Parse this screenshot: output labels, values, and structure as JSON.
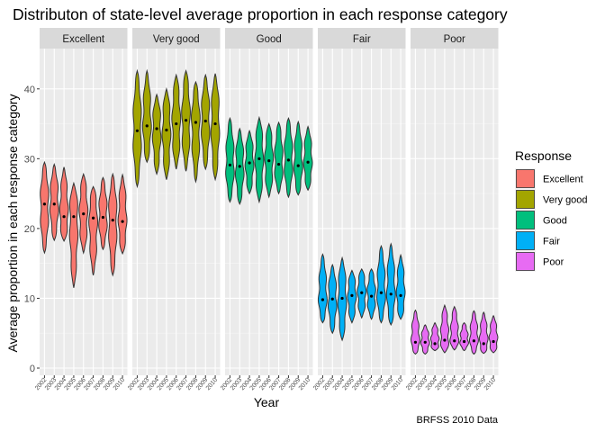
{
  "chart_data": {
    "type": "violin",
    "title": "Distributon of state-level average proportion in each response category",
    "xlabel": "Year",
    "ylabel": "Average proportion in each response category",
    "caption": "BRFSS 2010 Data",
    "ylim": [
      0,
      45
    ],
    "yticks": [
      0,
      10,
      20,
      30,
      40
    ],
    "years": [
      "2002",
      "2003",
      "2004",
      "2005",
      "2006",
      "2007",
      "2008",
      "2009",
      "2010"
    ],
    "legend": {
      "title": "Response",
      "position": "right"
    },
    "grid": true,
    "facets": [
      {
        "name": "Excellent",
        "color": "#F8766D",
        "violins": [
          {
            "year": "2002",
            "min": 16.5,
            "max": 29.5,
            "median": 23.5
          },
          {
            "year": "2003",
            "min": 18.3,
            "max": 29.2,
            "median": 23.5
          },
          {
            "year": "2004",
            "min": 18.2,
            "max": 28.8,
            "median": 21.7
          },
          {
            "year": "2005",
            "min": 11.5,
            "max": 26.5,
            "median": 21.7
          },
          {
            "year": "2006",
            "min": 16.5,
            "max": 27.8,
            "median": 22.1
          },
          {
            "year": "2007",
            "min": 13.3,
            "max": 26.0,
            "median": 21.5
          },
          {
            "year": "2008",
            "min": 17.0,
            "max": 27.3,
            "median": 21.6
          },
          {
            "year": "2009",
            "min": 13.3,
            "max": 27.8,
            "median": 21.2
          },
          {
            "year": "2010",
            "min": 16.4,
            "max": 27.7,
            "median": 21.0
          }
        ]
      },
      {
        "name": "Very good",
        "color": "#A3A500",
        "violins": [
          {
            "year": "2002",
            "min": 26.0,
            "max": 42.6,
            "median": 34.0
          },
          {
            "year": "2003",
            "min": 29.5,
            "max": 42.6,
            "median": 34.7
          },
          {
            "year": "2004",
            "min": 27.8,
            "max": 39.2,
            "median": 34.3
          },
          {
            "year": "2005",
            "min": 27.0,
            "max": 40.0,
            "median": 34.1
          },
          {
            "year": "2006",
            "min": 28.5,
            "max": 42.0,
            "median": 35.0
          },
          {
            "year": "2007",
            "min": 28.2,
            "max": 42.6,
            "median": 35.5
          },
          {
            "year": "2008",
            "min": 26.7,
            "max": 41.0,
            "median": 35.2
          },
          {
            "year": "2009",
            "min": 28.5,
            "max": 42.0,
            "median": 35.4
          },
          {
            "year": "2010",
            "min": 27.0,
            "max": 42.2,
            "median": 35.0
          }
        ]
      },
      {
        "name": "Good",
        "color": "#00BF7D",
        "violins": [
          {
            "year": "2002",
            "min": 23.8,
            "max": 35.8,
            "median": 29.1
          },
          {
            "year": "2003",
            "min": 23.5,
            "max": 34.3,
            "median": 28.9
          },
          {
            "year": "2004",
            "min": 25.0,
            "max": 34.0,
            "median": 29.4
          },
          {
            "year": "2005",
            "min": 23.8,
            "max": 35.9,
            "median": 30.0
          },
          {
            "year": "2006",
            "min": 24.5,
            "max": 35.0,
            "median": 29.7
          },
          {
            "year": "2007",
            "min": 25.0,
            "max": 35.2,
            "median": 29.2
          },
          {
            "year": "2008",
            "min": 24.5,
            "max": 35.8,
            "median": 29.8
          },
          {
            "year": "2009",
            "min": 24.8,
            "max": 35.3,
            "median": 29.0
          },
          {
            "year": "2010",
            "min": 25.5,
            "max": 34.6,
            "median": 29.5
          }
        ]
      },
      {
        "name": "Fair",
        "color": "#00B0F6",
        "violins": [
          {
            "year": "2002",
            "min": 6.5,
            "max": 16.3,
            "median": 9.8
          },
          {
            "year": "2003",
            "min": 5.0,
            "max": 14.8,
            "median": 9.9
          },
          {
            "year": "2004",
            "min": 4.0,
            "max": 15.8,
            "median": 10.0
          },
          {
            "year": "2005",
            "min": 6.5,
            "max": 14.0,
            "median": 10.4
          },
          {
            "year": "2006",
            "min": 7.2,
            "max": 14.2,
            "median": 10.8
          },
          {
            "year": "2007",
            "min": 7.0,
            "max": 14.2,
            "median": 10.3
          },
          {
            "year": "2008",
            "min": 6.5,
            "max": 17.5,
            "median": 10.8
          },
          {
            "year": "2009",
            "min": 6.2,
            "max": 17.8,
            "median": 10.6
          },
          {
            "year": "2010",
            "min": 7.0,
            "max": 16.2,
            "median": 10.4
          }
        ]
      },
      {
        "name": "Poor",
        "color": "#E76BF3",
        "violins": [
          {
            "year": "2002",
            "min": 2.0,
            "max": 8.3,
            "median": 3.7
          },
          {
            "year": "2003",
            "min": 2.0,
            "max": 6.2,
            "median": 3.7
          },
          {
            "year": "2004",
            "min": 2.5,
            "max": 6.5,
            "median": 3.5
          },
          {
            "year": "2005",
            "min": 2.2,
            "max": 9.0,
            "median": 4.0
          },
          {
            "year": "2006",
            "min": 2.6,
            "max": 8.8,
            "median": 3.9
          },
          {
            "year": "2007",
            "min": 2.5,
            "max": 6.5,
            "median": 3.8
          },
          {
            "year": "2008",
            "min": 2.0,
            "max": 8.2,
            "median": 3.9
          },
          {
            "year": "2009",
            "min": 2.1,
            "max": 8.0,
            "median": 3.5
          },
          {
            "year": "2010",
            "min": 2.2,
            "max": 7.5,
            "median": 3.8
          }
        ]
      }
    ]
  }
}
